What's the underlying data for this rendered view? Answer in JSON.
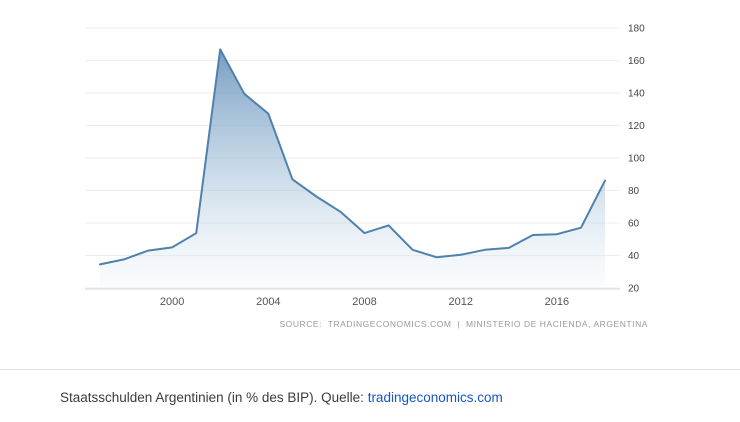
{
  "chart_data": {
    "type": "area",
    "title": "Staatsschulden Argentinien (in % des BIP)",
    "xlabel": "",
    "ylabel": "",
    "x": [
      1997,
      1998,
      1999,
      2000,
      2001,
      2002,
      2003,
      2004,
      2005,
      2006,
      2007,
      2008,
      2009,
      2010,
      2011,
      2012,
      2013,
      2014,
      2015,
      2016,
      2017,
      2018
    ],
    "values": [
      34.5,
      37.6,
      43.0,
      45.0,
      53.7,
      166.8,
      139.5,
      127.3,
      86.9,
      76.3,
      66.9,
      53.8,
      58.5,
      43.5,
      38.9,
      40.4,
      43.5,
      44.7,
      52.6,
      53.1,
      57.1,
      86.1
    ],
    "series_name": "Staatsschulden in % des BIP",
    "xticks": [
      2000,
      2004,
      2008,
      2012,
      2016
    ],
    "yticks": [
      20,
      40,
      60,
      80,
      100,
      120,
      140,
      160,
      180
    ],
    "xlim": [
      1997,
      2018
    ],
    "ylim": [
      20,
      180
    ],
    "grid": true,
    "legend": "none",
    "source": "SOURCE:  TRADINGECONOMICS.COM  |  MINISTERIO DE HACIENDA, ARGENTINA",
    "colors": {
      "line": "#4f81ad",
      "fill_top": "#5e8cb8",
      "fill_mid": "#9dbcd6",
      "fill_bottom": "#edf3f9",
      "grid": "#ededed",
      "axis": "#d9d9d9"
    }
  },
  "caption": {
    "text": "Staatsschulden Argentinien (in % des BIP). Quelle: ",
    "link_text": "tradingeconomics.com",
    "link_color": "#1556c4"
  }
}
